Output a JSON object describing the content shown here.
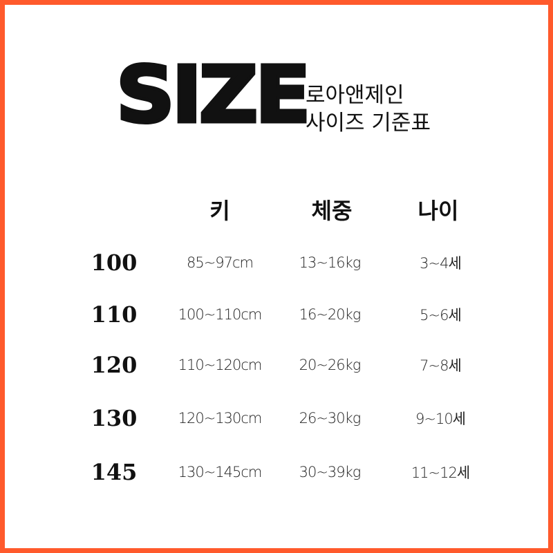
{
  "title": "SIZE",
  "subtitle": {
    "line1": "로아앤제인",
    "line2": "사이즈 기준표"
  },
  "accent_color": "#ff5a2c",
  "headers": [
    "키",
    "체중",
    "나이"
  ],
  "rows": [
    {
      "size": "100",
      "height": "85~97cm",
      "weight": "13~16kg",
      "age": "3~4세"
    },
    {
      "size": "110",
      "height": "100~110cm",
      "weight": "16~20kg",
      "age": "5~6세"
    },
    {
      "size": "120",
      "height": "110~120cm",
      "weight": "20~26kg",
      "age": "7~8세"
    },
    {
      "size": "130",
      "height": "120~130cm",
      "weight": "26~30kg",
      "age": "9~10세"
    },
    {
      "size": "145",
      "height": "130~145cm",
      "weight": "30~39kg",
      "age": "11~12세"
    }
  ]
}
